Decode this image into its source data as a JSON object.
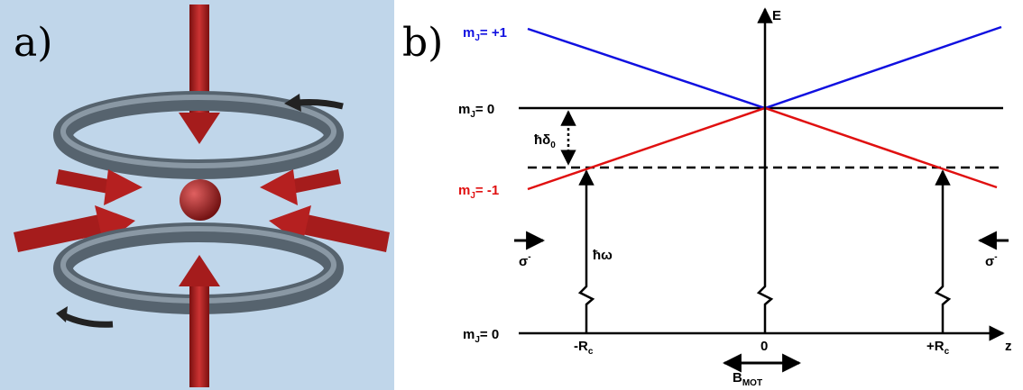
{
  "panel_a": {
    "label": "a)"
  },
  "panel_b": {
    "label": "b)",
    "levels": [
      {
        "base": "m",
        "sub": "J",
        "rest": "= +1"
      },
      {
        "base": "m",
        "sub": "J",
        "rest": "= 0"
      },
      {
        "base": "m",
        "sub": "J",
        "rest": "= -1"
      },
      {
        "base": "m",
        "sub": "J",
        "rest": "= 0"
      }
    ],
    "energy_axis": "E",
    "detuning": {
      "base": "ħδ",
      "sub": "0"
    },
    "photon": "ħω",
    "sigma_left": {
      "base": "σ",
      "sup": "-"
    },
    "sigma_right": {
      "base": "σ",
      "sup": "-"
    },
    "ticks": [
      {
        "base": "-R",
        "sub": "c"
      },
      {
        "base": "0"
      },
      {
        "base": "+R",
        "sub": "c"
      }
    ],
    "z_axis": "z",
    "field": {
      "base": "B",
      "sub": "MOT"
    }
  }
}
